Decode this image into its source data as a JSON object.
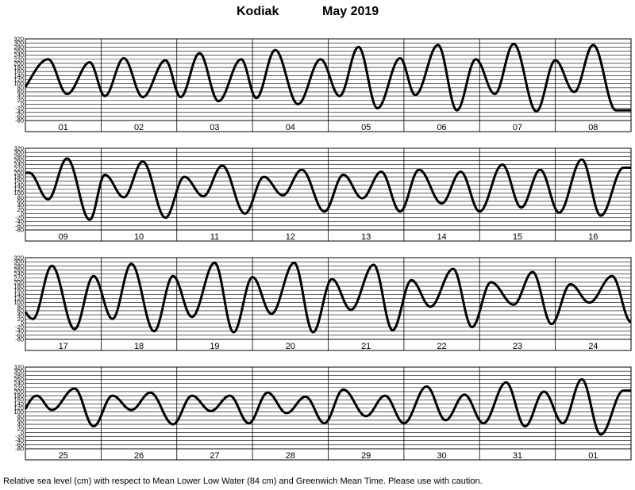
{
  "title": {
    "station": "Kodiak",
    "period": "May 2019"
  },
  "footer": "Relative sea level (cm) with respect to Mean Lower Low Water (84 cm) and Greenwich Mean Time. Please use with caution.",
  "colors": {
    "curve": "#000000",
    "grid": "#000000",
    "background": "#ffffff"
  },
  "chart_data": [
    {
      "type": "line",
      "days": [
        "01",
        "02",
        "03",
        "04",
        "05",
        "06",
        "07",
        "08"
      ],
      "y_ticks": [
        -80,
        -60,
        -40,
        -20,
        0,
        20,
        40,
        60,
        80,
        100,
        120,
        140,
        160,
        180,
        200,
        220,
        240,
        260,
        280,
        300,
        320
      ],
      "ylim": [
        -80,
        320
      ],
      "grid": true,
      "tides": [
        [
          [
            -0.15,
            40
          ],
          [
            0.3,
            220
          ],
          [
            0.55,
            50
          ],
          [
            0.85,
            205
          ]
        ],
        [
          [
            1.05,
            40
          ],
          [
            1.3,
            225
          ],
          [
            1.55,
            35
          ],
          [
            1.85,
            215
          ]
        ],
        [
          [
            2.05,
            35
          ],
          [
            2.3,
            250
          ],
          [
            2.55,
            15
          ],
          [
            2.85,
            220
          ]
        ],
        [
          [
            3.05,
            30
          ],
          [
            3.3,
            265
          ],
          [
            3.6,
            0
          ],
          [
            3.9,
            220
          ]
        ],
        [
          [
            4.15,
            40
          ],
          [
            4.4,
            280
          ],
          [
            4.65,
            -20
          ],
          [
            4.95,
            225
          ]
        ],
        [
          [
            5.15,
            45
          ],
          [
            5.45,
            290
          ],
          [
            5.7,
            -30
          ],
          [
            5.95,
            220
          ]
        ],
        [
          [
            6.2,
            50
          ],
          [
            6.45,
            295
          ],
          [
            6.75,
            -35
          ],
          [
            7.0,
            215
          ]
        ],
        [
          [
            7.25,
            60
          ],
          [
            7.5,
            290
          ],
          [
            7.8,
            -30
          ]
        ]
      ]
    },
    {
      "type": "line",
      "days": [
        "09",
        "10",
        "11",
        "12",
        "13",
        "14",
        "15",
        "16"
      ],
      "y_ticks": [
        -80,
        -60,
        -40,
        -20,
        0,
        20,
        40,
        60,
        80,
        100,
        120,
        140,
        160,
        180,
        200,
        220,
        240,
        260,
        280,
        300,
        320
      ],
      "ylim": [
        -80,
        320
      ],
      "grid": true,
      "tides": [
        [
          [
            -0.2,
            195
          ],
          [
            0.05,
            200
          ],
          [
            0.3,
            70
          ],
          [
            0.55,
            270
          ],
          [
            0.85,
            -30
          ]
        ],
        [
          [
            1.05,
            190
          ],
          [
            1.3,
            80
          ],
          [
            1.55,
            255
          ],
          [
            1.85,
            -20
          ]
        ],
        [
          [
            2.1,
            180
          ],
          [
            2.35,
            85
          ],
          [
            2.6,
            235
          ],
          [
            2.9,
            0
          ]
        ],
        [
          [
            3.15,
            180
          ],
          [
            3.4,
            90
          ],
          [
            3.65,
            215
          ],
          [
            3.95,
            10
          ]
        ],
        [
          [
            4.2,
            190
          ],
          [
            4.45,
            75
          ],
          [
            4.7,
            205
          ],
          [
            4.95,
            10
          ]
        ],
        [
          [
            5.2,
            215
          ],
          [
            5.5,
            50
          ],
          [
            5.75,
            205
          ],
          [
            6.0,
            10
          ]
        ],
        [
          [
            6.3,
            240
          ],
          [
            6.55,
            30
          ],
          [
            6.8,
            215
          ],
          [
            7.05,
            5
          ]
        ],
        [
          [
            7.35,
            265
          ],
          [
            7.6,
            -10
          ],
          [
            7.9,
            225
          ]
        ]
      ]
    },
    {
      "type": "line",
      "days": [
        "17",
        "18",
        "19",
        "20",
        "21",
        "22",
        "23",
        "24"
      ],
      "y_ticks": [
        -80,
        -60,
        -40,
        -20,
        0,
        20,
        40,
        60,
        80,
        100,
        120,
        140,
        160,
        180,
        200,
        220,
        240,
        260,
        280,
        300,
        320
      ],
      "ylim": [
        -80,
        320
      ],
      "grid": true,
      "tides": [
        [
          [
            -0.15,
            120
          ],
          [
            0.1,
            20
          ],
          [
            0.35,
            280
          ],
          [
            0.65,
            -30
          ],
          [
            0.9,
            230
          ]
        ],
        [
          [
            1.15,
            20
          ],
          [
            1.4,
            290
          ],
          [
            1.7,
            -40
          ],
          [
            1.95,
            230
          ]
        ],
        [
          [
            2.2,
            30
          ],
          [
            2.5,
            295
          ],
          [
            2.75,
            -45
          ],
          [
            3.0,
            225
          ]
        ],
        [
          [
            3.25,
            45
          ],
          [
            3.55,
            295
          ],
          [
            3.8,
            -45
          ],
          [
            4.05,
            215
          ]
        ],
        [
          [
            4.3,
            65
          ],
          [
            4.6,
            285
          ],
          [
            4.85,
            -35
          ],
          [
            5.1,
            210
          ]
        ],
        [
          [
            5.35,
            80
          ],
          [
            5.65,
            265
          ],
          [
            5.9,
            -20
          ],
          [
            6.15,
            200
          ]
        ],
        [
          [
            6.45,
            90
          ],
          [
            6.7,
            250
          ],
          [
            6.95,
            -5
          ],
          [
            7.2,
            190
          ]
        ],
        [
          [
            7.45,
            100
          ],
          [
            7.75,
            230
          ],
          [
            8.0,
            5
          ]
        ]
      ]
    },
    {
      "type": "line",
      "days": [
        "25",
        "26",
        "27",
        "28",
        "29",
        "30",
        "31",
        "01"
      ],
      "y_ticks": [
        -80,
        -60,
        -40,
        -20,
        0,
        20,
        40,
        60,
        80,
        100,
        120,
        140,
        160,
        180,
        200,
        220,
        240,
        260,
        280,
        300,
        320
      ],
      "ylim": [
        -80,
        320
      ],
      "grid": true,
      "tides": [
        [
          [
            -0.15,
            50
          ],
          [
            0.15,
            180
          ],
          [
            0.35,
            110
          ],
          [
            0.65,
            215
          ],
          [
            0.9,
            30
          ]
        ],
        [
          [
            1.15,
            180
          ],
          [
            1.4,
            110
          ],
          [
            1.65,
            195
          ],
          [
            1.95,
            40
          ]
        ],
        [
          [
            2.2,
            180
          ],
          [
            2.45,
            105
          ],
          [
            2.7,
            180
          ],
          [
            2.95,
            45
          ]
        ],
        [
          [
            3.2,
            195
          ],
          [
            3.45,
            95
          ],
          [
            3.7,
            175
          ],
          [
            3.95,
            45
          ]
        ],
        [
          [
            4.2,
            210
          ],
          [
            4.5,
            80
          ],
          [
            4.75,
            180
          ],
          [
            5.0,
            45
          ]
        ],
        [
          [
            5.3,
            225
          ],
          [
            5.55,
            60
          ],
          [
            5.8,
            185
          ],
          [
            6.05,
            45
          ]
        ],
        [
          [
            6.35,
            245
          ],
          [
            6.6,
            30
          ],
          [
            6.85,
            200
          ],
          [
            7.1,
            45
          ]
        ],
        [
          [
            7.35,
            260
          ],
          [
            7.6,
            -10
          ],
          [
            7.9,
            205
          ]
        ]
      ]
    }
  ]
}
